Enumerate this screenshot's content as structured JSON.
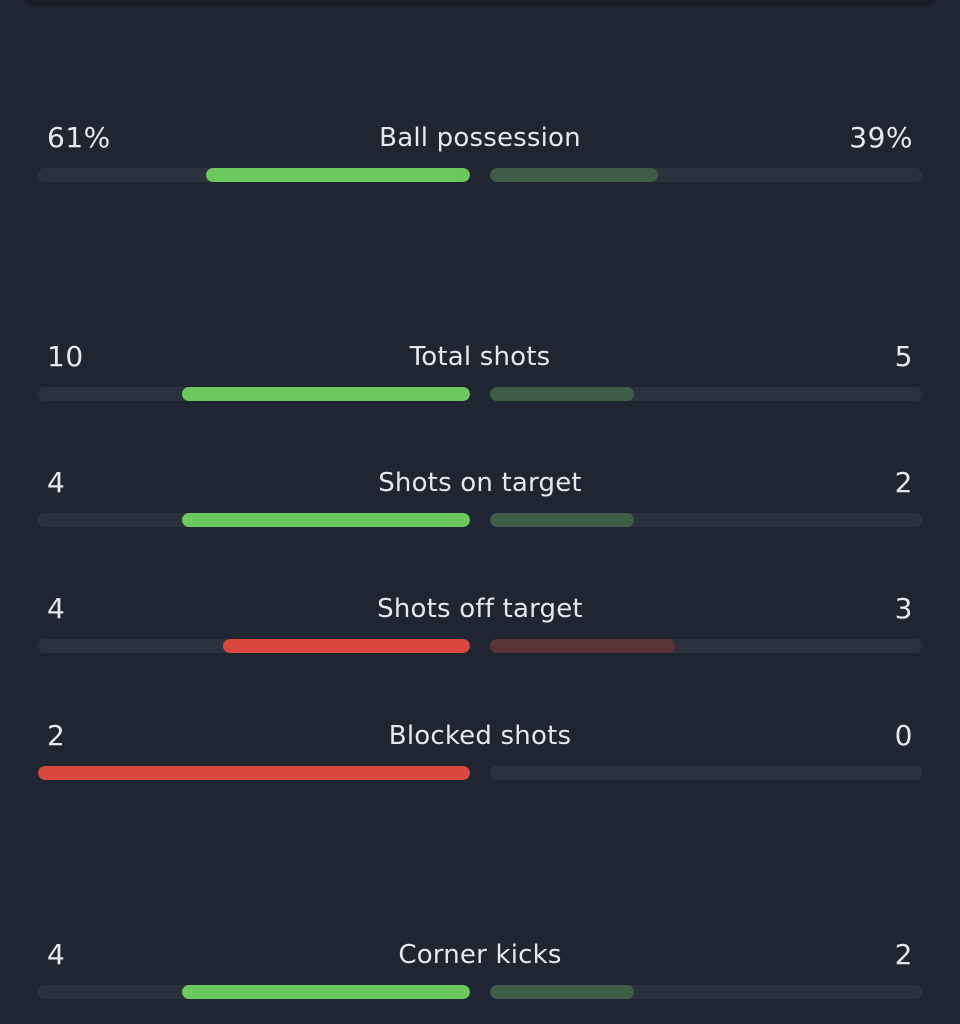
{
  "colors": {
    "background": "#1f2531",
    "track": "#2b323e",
    "win_green": "#6cc75d",
    "lose_green": "#3f5c48",
    "win_red": "#d9483f",
    "lose_red": "#5a3338"
  },
  "stats": [
    {
      "label": "Ball possession",
      "home": "61%",
      "away": "39%",
      "home_fraction": 0.61,
      "away_fraction": 0.39,
      "home_color": "#6cc75d",
      "away_color": "#3f5c48"
    },
    {
      "label": "Total shots",
      "home": "10",
      "away": "5",
      "home_fraction": 0.667,
      "away_fraction": 0.333,
      "home_color": "#6cc75d",
      "away_color": "#3f5c48"
    },
    {
      "label": "Shots on target",
      "home": "4",
      "away": "2",
      "home_fraction": 0.667,
      "away_fraction": 0.333,
      "home_color": "#6cc75d",
      "away_color": "#3f5c48"
    },
    {
      "label": "Shots off target",
      "home": "4",
      "away": "3",
      "home_fraction": 0.571,
      "away_fraction": 0.429,
      "home_color": "#d9483f",
      "away_color": "#5a3338"
    },
    {
      "label": "Blocked shots",
      "home": "2",
      "away": "0",
      "home_fraction": 1.0,
      "away_fraction": 0.0,
      "home_color": "#d9483f",
      "away_color": "#5a3338"
    },
    {
      "label": "Corner kicks",
      "home": "4",
      "away": "2",
      "home_fraction": 0.667,
      "away_fraction": 0.333,
      "home_color": "#6cc75d",
      "away_color": "#3f5c48"
    }
  ]
}
